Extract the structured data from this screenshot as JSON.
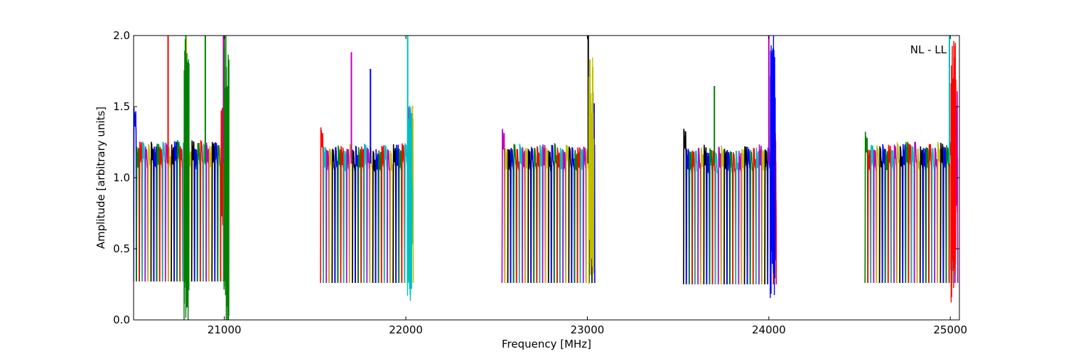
{
  "chart_data": {
    "type": "line",
    "title": "",
    "annotation": "NL - LL",
    "xlabel": "Frequency [MHz]",
    "ylabel": "Amplitude [arbitrary units]",
    "xlim": [
      20500,
      25050
    ],
    "ylim": [
      0.0,
      2.0
    ],
    "xticks": [
      21000,
      22000,
      23000,
      24000,
      25000
    ],
    "xtick_labels": [
      "21000",
      "22000",
      "23000",
      "24000",
      "25000"
    ],
    "yticks": [
      0.0,
      0.5,
      1.0,
      1.5,
      2.0
    ],
    "ytick_labels": [
      "0.0",
      "0.5",
      "1.0",
      "1.5",
      "2.0"
    ],
    "grid": false,
    "channel_colors": [
      "#0000ff",
      "#008000",
      "#ff0000",
      "#00bfbf",
      "#bf00bf",
      "#bfbf00",
      "#000000"
    ],
    "groups": [
      {
        "start": 20500,
        "end": 21000,
        "first_color": 0,
        "peak": 1.24,
        "min": 0.27,
        "edge_peak": 1.5,
        "spur_freqs": [
          20690,
          20790,
          20895,
          20995
        ],
        "noisy_edge": true
      },
      {
        "start": 21530,
        "end": 22030,
        "first_color": 2,
        "peak": 1.22,
        "min": 0.26,
        "edge_peak": 1.36,
        "spur_freqs": [
          21700,
          21805,
          22010
        ],
        "noisy_edge": true
      },
      {
        "start": 22530,
        "end": 23030,
        "first_color": 4,
        "peak": 1.22,
        "min": 0.26,
        "edge_peak": 1.35,
        "spur_freqs": [
          23005
        ],
        "noisy_edge": true
      },
      {
        "start": 23530,
        "end": 24030,
        "first_color": 6,
        "peak": 1.21,
        "min": 0.25,
        "edge_peak": 1.35,
        "spur_freqs": [
          23700,
          24000
        ],
        "noisy_edge": true
      },
      {
        "start": 24530,
        "end": 25030,
        "first_color": 1,
        "peak": 1.23,
        "min": 0.26,
        "edge_peak": 1.33,
        "spur_freqs": [
          24995
        ],
        "noisy_edge": true
      }
    ],
    "channels_per_group": 32,
    "channel_width_mhz": 16
  }
}
